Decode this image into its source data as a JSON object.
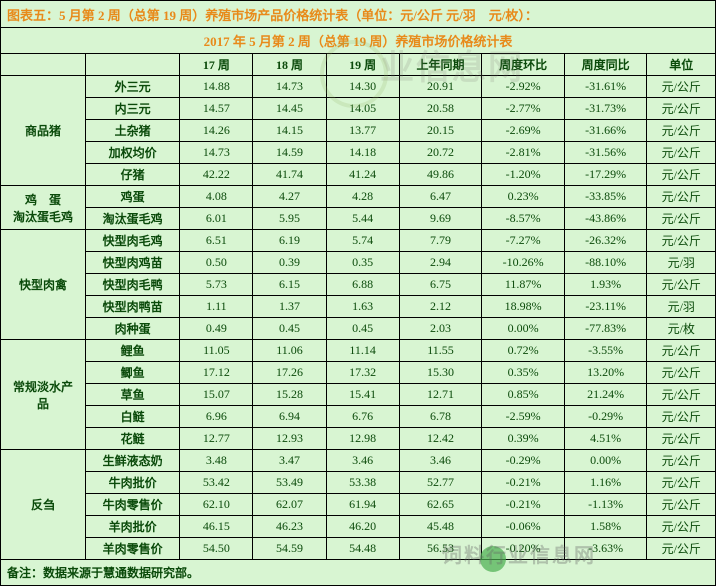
{
  "title": "图表五：5 月第 2 周（总第 19 周）养殖市场产品价格统计表（单位：元/公斤 元/羽　元/枚）：",
  "subtitle": "2017 年 5 月第 2 周（总第 19 周）养殖市场价格统计表",
  "headers": [
    "",
    "",
    "17 周",
    "18 周",
    "19 周",
    "上年同期",
    "周度环比",
    "周度同比",
    "单位"
  ],
  "footer": "备注：数据来源于慧通数据研究部。",
  "watermark_text": "业信息网",
  "watermark2": "饲料行业信息网",
  "groups": [
    {
      "cat": "商品猪",
      "rows": [
        {
          "item": "外三元",
          "w17": "14.88",
          "w18": "14.73",
          "w19": "14.30",
          "ly": "20.91",
          "hb": "-2.92%",
          "tb": "-31.61%",
          "unit": "元/公斤"
        },
        {
          "item": "内三元",
          "w17": "14.57",
          "w18": "14.45",
          "w19": "14.05",
          "ly": "20.58",
          "hb": "-2.77%",
          "tb": "-31.73%",
          "unit": "元/公斤"
        },
        {
          "item": "土杂猪",
          "w17": "14.26",
          "w18": "14.15",
          "w19": "13.77",
          "ly": "20.15",
          "hb": "-2.69%",
          "tb": "-31.66%",
          "unit": "元/公斤"
        },
        {
          "item": "加权均价",
          "w17": "14.73",
          "w18": "14.59",
          "w19": "14.18",
          "ly": "20.72",
          "hb": "-2.81%",
          "tb": "-31.56%",
          "unit": "元/公斤"
        },
        {
          "item": "仔猪",
          "w17": "42.22",
          "w18": "41.74",
          "w19": "41.24",
          "ly": "49.86",
          "hb": "-1.20%",
          "tb": "-17.29%",
          "unit": "元/公斤"
        }
      ]
    },
    {
      "cat": "鸡　蛋\n淘汰蛋毛鸡",
      "rows": [
        {
          "item": "鸡蛋",
          "w17": "4.08",
          "w18": "4.27",
          "w19": "4.28",
          "ly": "6.47",
          "hb": "0.23%",
          "tb": "-33.85%",
          "unit": "元/公斤"
        },
        {
          "item": "淘汰蛋毛鸡",
          "w17": "6.01",
          "w18": "5.95",
          "w19": "5.44",
          "ly": "9.69",
          "hb": "-8.57%",
          "tb": "-43.86%",
          "unit": "元/公斤"
        }
      ]
    },
    {
      "cat": "快型肉禽",
      "rows": [
        {
          "item": "快型肉毛鸡",
          "w17": "6.51",
          "w18": "6.19",
          "w19": "5.74",
          "ly": "7.79",
          "hb": "-7.27%",
          "tb": "-26.32%",
          "unit": "元/公斤"
        },
        {
          "item": "快型肉鸡苗",
          "w17": "0.50",
          "w18": "0.39",
          "w19": "0.35",
          "ly": "2.94",
          "hb": "-10.26%",
          "tb": "-88.10%",
          "unit": "元/羽"
        },
        {
          "item": "快型肉毛鸭",
          "w17": "5.73",
          "w18": "6.15",
          "w19": "6.88",
          "ly": "6.75",
          "hb": "11.87%",
          "tb": "1.93%",
          "unit": "元/公斤"
        },
        {
          "item": "快型肉鸭苗",
          "w17": "1.11",
          "w18": "1.37",
          "w19": "1.63",
          "ly": "2.12",
          "hb": "18.98%",
          "tb": "-23.11%",
          "unit": "元/羽"
        },
        {
          "item": "肉种蛋",
          "w17": "0.49",
          "w18": "0.45",
          "w19": "0.45",
          "ly": "2.03",
          "hb": "0.00%",
          "tb": "-77.83%",
          "unit": "元/枚"
        }
      ]
    },
    {
      "cat": "常规淡水产\n品",
      "rows": [
        {
          "item": "鲤鱼",
          "w17": "11.05",
          "w18": "11.06",
          "w19": "11.14",
          "ly": "11.55",
          "hb": "0.72%",
          "tb": "-3.55%",
          "unit": "元/公斤"
        },
        {
          "item": "鲫鱼",
          "w17": "17.12",
          "w18": "17.26",
          "w19": "17.32",
          "ly": "15.30",
          "hb": "0.35%",
          "tb": "13.20%",
          "unit": "元/公斤"
        },
        {
          "item": "草鱼",
          "w17": "15.07",
          "w18": "15.28",
          "w19": "15.41",
          "ly": "12.71",
          "hb": "0.85%",
          "tb": "21.24%",
          "unit": "元/公斤"
        },
        {
          "item": "白鲢",
          "w17": "6.96",
          "w18": "6.94",
          "w19": "6.76",
          "ly": "6.78",
          "hb": "-2.59%",
          "tb": "-0.29%",
          "unit": "元/公斤"
        },
        {
          "item": "花鲢",
          "w17": "12.77",
          "w18": "12.93",
          "w19": "12.98",
          "ly": "12.42",
          "hb": "0.39%",
          "tb": "4.51%",
          "unit": "元/公斤"
        }
      ]
    },
    {
      "cat": "反刍",
      "rows": [
        {
          "item": "生鲜液态奶",
          "w17": "3.48",
          "w18": "3.47",
          "w19": "3.46",
          "ly": "3.46",
          "hb": "-0.29%",
          "tb": "0.00%",
          "unit": "元/公斤"
        },
        {
          "item": "牛肉批价",
          "w17": "53.42",
          "w18": "53.49",
          "w19": "53.38",
          "ly": "52.77",
          "hb": "-0.21%",
          "tb": "1.16%",
          "unit": "元/公斤"
        },
        {
          "item": "牛肉零售价",
          "w17": "62.10",
          "w18": "62.07",
          "w19": "61.94",
          "ly": "62.65",
          "hb": "-0.21%",
          "tb": "-1.13%",
          "unit": "元/公斤"
        },
        {
          "item": "羊肉批价",
          "w17": "46.15",
          "w18": "46.23",
          "w19": "46.20",
          "ly": "45.48",
          "hb": "-0.06%",
          "tb": "1.58%",
          "unit": "元/公斤"
        },
        {
          "item": "羊肉零售价",
          "w17": "54.50",
          "w18": "54.59",
          "w19": "54.48",
          "ly": "56.53",
          "hb": "-0.20%",
          "tb": "-3.63%",
          "unit": "元/公斤"
        }
      ]
    }
  ]
}
